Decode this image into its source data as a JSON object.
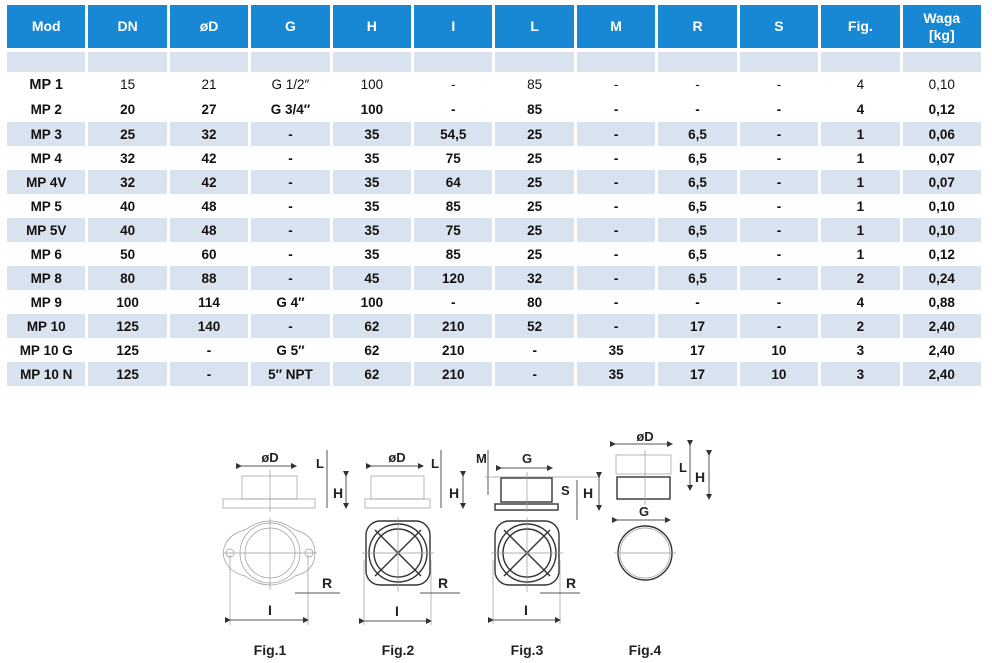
{
  "table": {
    "headers": [
      "Mod",
      "DN",
      "øD",
      "G",
      "H",
      "I",
      "L",
      "M",
      "R",
      "S",
      "Fig.",
      "Waga\n[kg]"
    ],
    "rows": [
      [
        "MP 1",
        "15",
        "21",
        "G 1/2″",
        "100",
        "-",
        "85",
        "-",
        "-",
        "-",
        "4",
        "0,10"
      ],
      [
        "MP 2",
        "20",
        "27",
        "G 3/4″",
        "100",
        "-",
        "85",
        "-",
        "-",
        "-",
        "4",
        "0,12"
      ],
      [
        "MP 3",
        "25",
        "32",
        "-",
        "35",
        "54,5",
        "25",
        "-",
        "6,5",
        "-",
        "1",
        "0,06"
      ],
      [
        "MP 4",
        "32",
        "42",
        "-",
        "35",
        "75",
        "25",
        "-",
        "6,5",
        "-",
        "1",
        "0,07"
      ],
      [
        "MP 4V",
        "32",
        "42",
        "-",
        "35",
        "64",
        "25",
        "-",
        "6,5",
        "-",
        "1",
        "0,07"
      ],
      [
        "MP 5",
        "40",
        "48",
        "-",
        "35",
        "85",
        "25",
        "-",
        "6,5",
        "-",
        "1",
        "0,10"
      ],
      [
        "MP 5V",
        "40",
        "48",
        "-",
        "35",
        "75",
        "25",
        "-",
        "6,5",
        "-",
        "1",
        "0,10"
      ],
      [
        "MP 6",
        "50",
        "60",
        "-",
        "35",
        "85",
        "25",
        "-",
        "6,5",
        "-",
        "1",
        "0,12"
      ],
      [
        "MP 8",
        "80",
        "88",
        "-",
        "45",
        "120",
        "32",
        "-",
        "6,5",
        "-",
        "2",
        "0,24"
      ],
      [
        "MP 9",
        "100",
        "114",
        "G 4″",
        "100",
        "-",
        "80",
        "-",
        "-",
        "-",
        "4",
        "0,88"
      ],
      [
        "MP 10",
        "125",
        "140",
        "-",
        "62",
        "210",
        "52",
        "-",
        "17",
        "-",
        "2",
        "2,40"
      ],
      [
        "MP 10 G",
        "125",
        "-",
        "G 5″",
        "62",
        "210",
        "-",
        "35",
        "17",
        "10",
        "3",
        "2,40"
      ],
      [
        "MP 10 N",
        "125",
        "-",
        "5″ NPT",
        "62",
        "210",
        "-",
        "35",
        "17",
        "10",
        "3",
        "2,40"
      ]
    ]
  },
  "figures": {
    "fig1": {
      "caption": "Fig.1",
      "D": "øD",
      "L": "L",
      "H": "H",
      "I": "I",
      "R": "R"
    },
    "fig2": {
      "caption": "Fig.2",
      "D": "øD",
      "L": "L",
      "H": "H",
      "I": "I",
      "R": "R"
    },
    "fig3": {
      "caption": "Fig.3",
      "M": "M",
      "G": "G",
      "S": "S",
      "H": "H",
      "I": "I",
      "R": "R"
    },
    "fig4": {
      "caption": "Fig.4",
      "D": "øD",
      "L": "L",
      "H": "H",
      "G": "G"
    }
  },
  "colors": {
    "header_bg": "#1888d4",
    "row_shade": "#d9e3ef"
  }
}
